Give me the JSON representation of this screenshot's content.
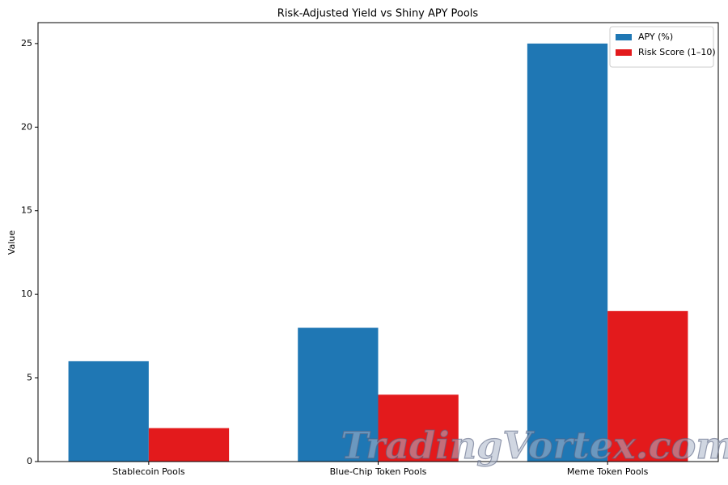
{
  "chart_data": {
    "type": "bar",
    "title": "Risk-Adjusted Yield vs Shiny APY Pools",
    "ylabel": "Value",
    "categories": [
      "Stablecoin Pools",
      "Blue-Chip Token Pools",
      "Meme Token Pools"
    ],
    "series": [
      {
        "name": "APY (%)",
        "color": "#1f77b4",
        "values": [
          6,
          8,
          25
        ]
      },
      {
        "name": "Risk Score (1–10)",
        "color": "#e31a1c",
        "values": [
          2,
          4,
          9
        ]
      }
    ],
    "ylim": [
      0,
      26.25
    ],
    "yticks": [
      0,
      5,
      10,
      15,
      20,
      25
    ],
    "grid": false,
    "legend": "upper right"
  },
  "watermark": "TradingVortex.com"
}
